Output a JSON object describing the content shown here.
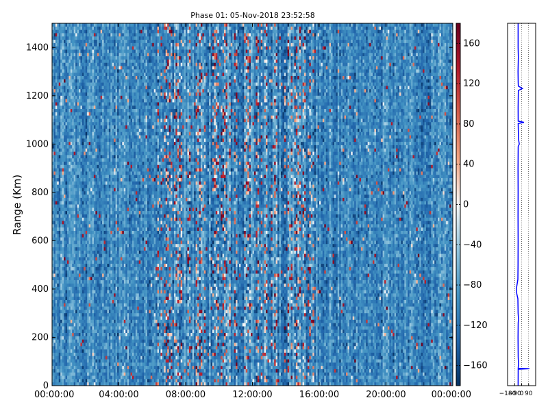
{
  "chart_data": [
    {
      "type": "heatmap",
      "title": "Phase 01: 05-Nov-2018 23:52:58",
      "xlabel": "",
      "ylabel": "Range (Km)",
      "x_tick_labels": [
        "00:00:00",
        "04:00:00",
        "08:00:00",
        "12:00:00",
        "16:00:00",
        "20:00:00",
        "00:00:00"
      ],
      "y_ticks": [
        0,
        200,
        400,
        600,
        800,
        1000,
        1200,
        1400
      ],
      "ylim": [
        0,
        1500
      ],
      "x_hours": [
        0,
        24
      ],
      "colorbar": {
        "ticks": [
          -160,
          -120,
          -80,
          -40,
          0,
          40,
          80,
          120,
          160
        ],
        "labels": [
          "−160",
          "−120",
          "−80",
          "−40",
          "0",
          "40",
          "80",
          "120",
          "160"
        ],
        "range": [
          -180,
          180
        ],
        "colormap": "RdBu_r"
      },
      "dominant_phase": -100,
      "noisy_band_hours": [
        6.3,
        15.8
      ]
    },
    {
      "type": "line",
      "ylim": [
        0,
        1500
      ],
      "xlim": [
        -180,
        180
      ],
      "x_tick_labels": [
        "−180",
        "−90",
        "0",
        "90"
      ],
      "x_ticks": [
        -180,
        -90,
        0,
        90
      ],
      "series_color": "#0000ff",
      "profile": [
        {
          "range": 1500,
          "phase": -45
        },
        {
          "range": 1400,
          "phase": -45
        },
        {
          "range": 1360,
          "phase": -42
        },
        {
          "range": 1300,
          "phase": -46
        },
        {
          "range": 1255,
          "phase": -44
        },
        {
          "range": 1240,
          "phase": -42
        },
        {
          "range": 1230,
          "phase": 10
        },
        {
          "range": 1222,
          "phase": -42
        },
        {
          "range": 1150,
          "phase": -45
        },
        {
          "range": 1095,
          "phase": -44
        },
        {
          "range": 1090,
          "phase": 30
        },
        {
          "range": 1085,
          "phase": -44
        },
        {
          "range": 1020,
          "phase": -40
        },
        {
          "range": 1000,
          "phase": -30
        },
        {
          "range": 990,
          "phase": -44
        },
        {
          "range": 900,
          "phase": -46
        },
        {
          "range": 800,
          "phase": -45
        },
        {
          "range": 700,
          "phase": -46
        },
        {
          "range": 600,
          "phase": -45
        },
        {
          "range": 500,
          "phase": -46
        },
        {
          "range": 440,
          "phase": -48
        },
        {
          "range": 420,
          "phase": -58
        },
        {
          "range": 400,
          "phase": -68
        },
        {
          "range": 380,
          "phase": -62
        },
        {
          "range": 360,
          "phase": -48
        },
        {
          "range": 300,
          "phase": -45
        },
        {
          "range": 275,
          "phase": -40
        },
        {
          "range": 260,
          "phase": -44
        },
        {
          "range": 200,
          "phase": -46
        },
        {
          "range": 120,
          "phase": -44
        },
        {
          "range": 90,
          "phase": -40
        },
        {
          "range": 72,
          "phase": -44
        },
        {
          "range": 70,
          "phase": 100
        },
        {
          "range": 68,
          "phase": -44
        },
        {
          "range": 0,
          "phase": -45
        }
      ]
    }
  ]
}
